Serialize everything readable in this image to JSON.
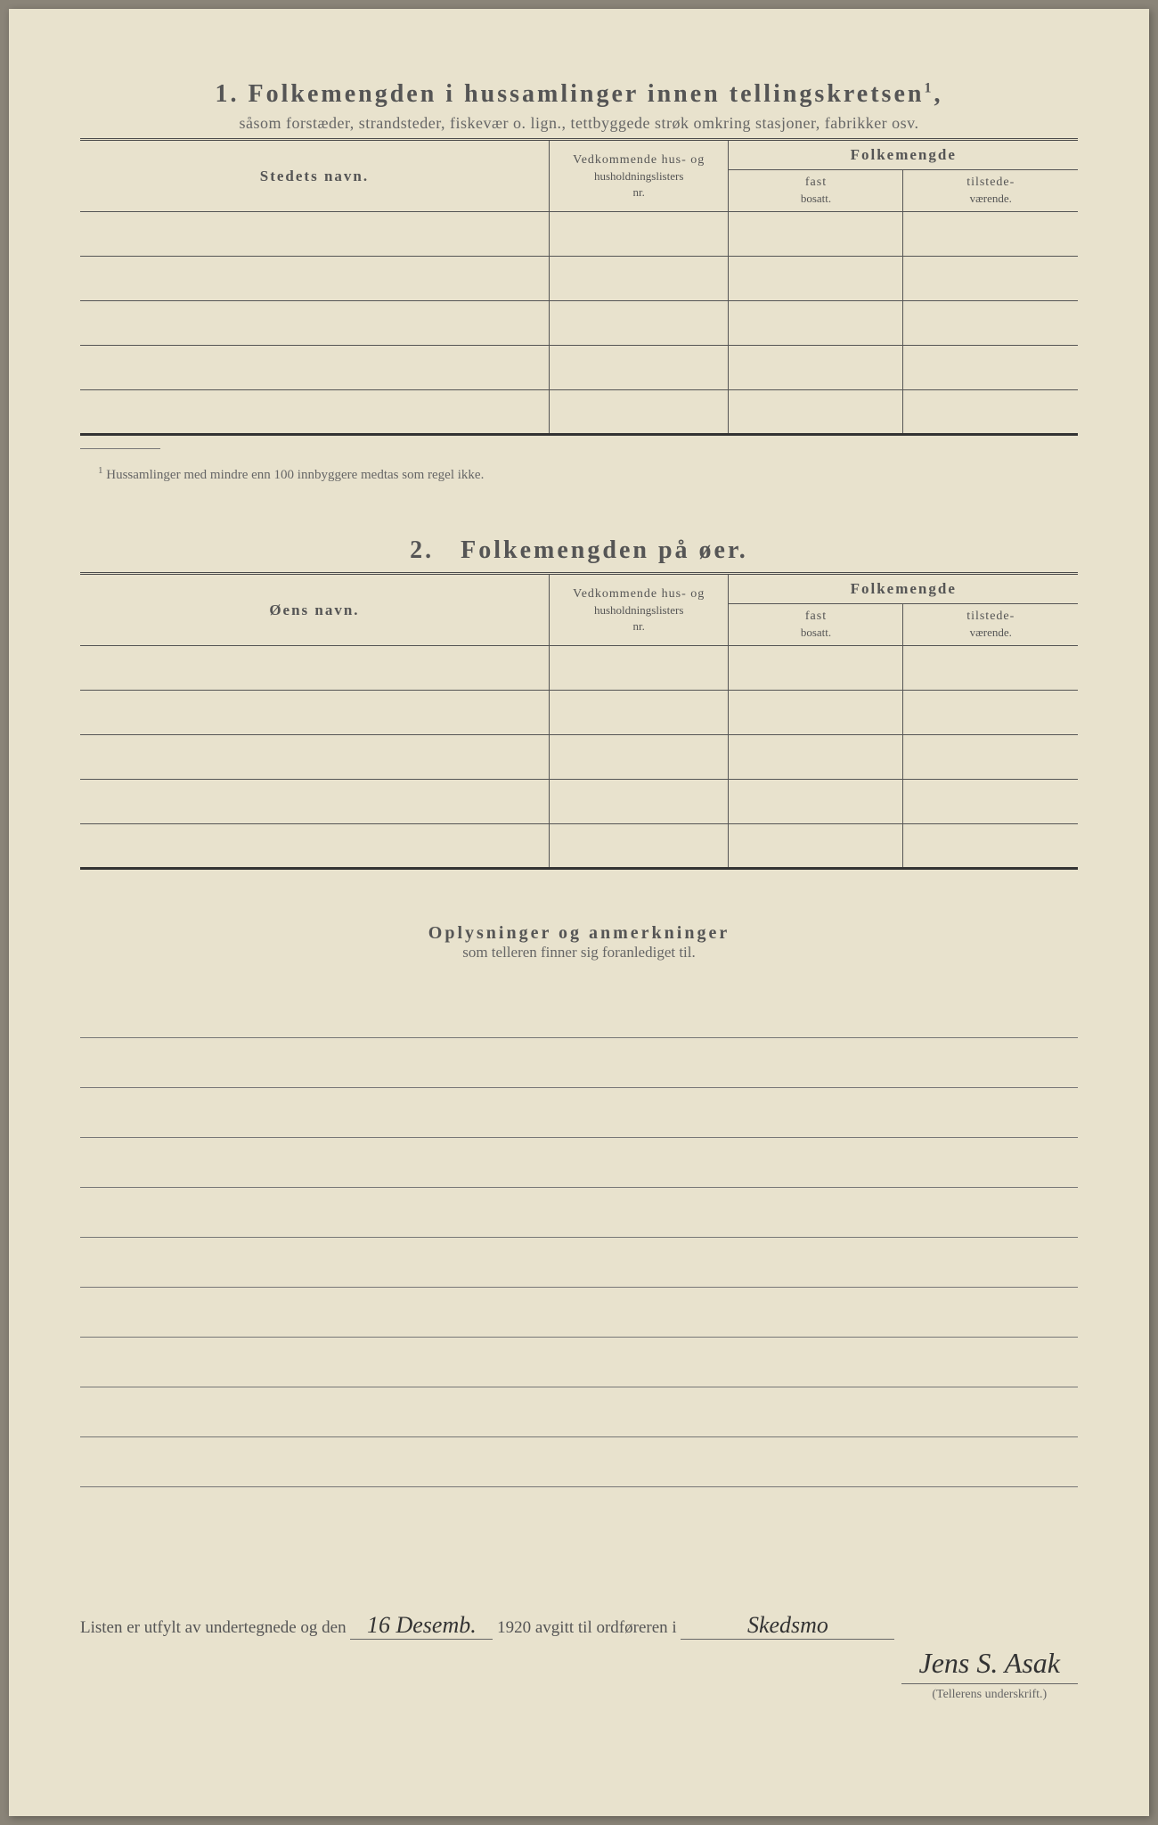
{
  "section1": {
    "number": "1.",
    "title": "Folkemengden i hussamlinger innen tellingskretsen",
    "title_sup": "1",
    "subtitle": "såsom forstæder, strandsteder, fiskevær o. lign., tettbyggede strøk omkring stasjoner, fabrikker osv.",
    "col1": "Stedets navn.",
    "col2_line1": "Vedkommende hus- og",
    "col2_line2": "husholdningslisters",
    "col2_line3": "nr.",
    "col3": "Folkemengde",
    "col3a_line1": "fast",
    "col3a_line2": "bosatt.",
    "col3b_line1": "tilstede-",
    "col3b_line2": "værende.",
    "row_count": 5
  },
  "footnote": {
    "marker": "1",
    "text": "Hussamlinger med mindre enn 100 innbyggere medtas som regel ikke."
  },
  "section2": {
    "number": "2.",
    "title": "Folkemengden på øer.",
    "col1": "Øens navn.",
    "col2_line1": "Vedkommende hus- og",
    "col2_line2": "husholdningslisters",
    "col2_line3": "nr.",
    "col3": "Folkemengde",
    "col3a_line1": "fast",
    "col3a_line2": "bosatt.",
    "col3b_line1": "tilstede-",
    "col3b_line2": "værende.",
    "row_count": 5
  },
  "remarks": {
    "title": "Oplysninger og anmerkninger",
    "subtitle": "som telleren finner sig foranlediget til.",
    "line_count": 10
  },
  "signature": {
    "prefix": "Listen er utfylt av undertegnede og den",
    "date_hand": "16 Desemb.",
    "year": "1920",
    "mid": "avgitt til ordføreren i",
    "place_hand": "Skedsmo",
    "name_hand": "Jens S. Asak",
    "caption": "(Tellerens underskrift.)"
  },
  "colors": {
    "paper": "#e8e2cd",
    "ink": "#4a4a4a",
    "line": "#555"
  }
}
